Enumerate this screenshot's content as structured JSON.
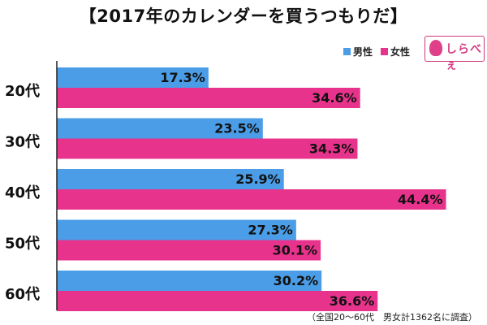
{
  "title": "【2017年のカレンダーを買うつもりだ】",
  "legend": {
    "male": "男性",
    "female": "女性"
  },
  "logo_text": "しらべぇ",
  "footnote": "（全国20〜60代　男女計1362名に調査）",
  "colors": {
    "male": "#4a9de6",
    "female": "#e8338c",
    "axis": "#222222"
  },
  "chart_data": {
    "type": "bar",
    "orientation": "horizontal",
    "title": "【2017年のカレンダーを買うつもりだ】",
    "categories": [
      "20代",
      "30代",
      "40代",
      "50代",
      "60代"
    ],
    "series": [
      {
        "name": "男性",
        "values": [
          17.3,
          23.5,
          25.9,
          27.3,
          30.2
        ]
      },
      {
        "name": "女性",
        "values": [
          34.6,
          34.3,
          44.4,
          30.1,
          36.6
        ]
      }
    ],
    "value_labels": {
      "男性": [
        "17.3%",
        "23.5%",
        "25.9%",
        "27.3%",
        "30.2%"
      ],
      "女性": [
        "34.6%",
        "34.3%",
        "44.4%",
        "30.1%",
        "36.6%"
      ]
    },
    "xlim": [
      0,
      50
    ],
    "grid": false,
    "legend_position": "top-right"
  }
}
